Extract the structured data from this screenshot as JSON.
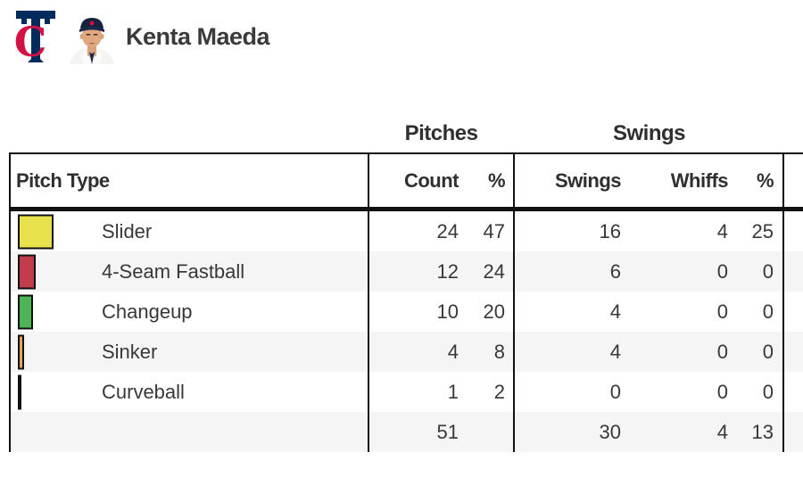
{
  "header": {
    "team_logo_name": "minnesota-twins-tc-logo",
    "player_name": "Kenta Maeda"
  },
  "table": {
    "group_headers": {
      "pitches": "Pitches",
      "swings": "Swings"
    },
    "columns": {
      "pitch_type": "Pitch Type",
      "count": "Count",
      "count_pct": "%",
      "swings": "Swings",
      "whiffs": "Whiffs",
      "swings_pct": "%"
    },
    "rows": [
      {
        "pitch": "Slider",
        "swatch_color": "#e7e14d",
        "count": "24",
        "count_pct": "47",
        "swings": "16",
        "whiffs": "4",
        "whiff_pct": "25"
      },
      {
        "pitch": "4-Seam Fastball",
        "swatch_color": "#c13c4d",
        "count": "12",
        "count_pct": "24",
        "swings": "6",
        "whiffs": "0",
        "whiff_pct": "0"
      },
      {
        "pitch": "Changeup",
        "swatch_color": "#4fb456",
        "count": "10",
        "count_pct": "20",
        "swings": "4",
        "whiffs": "0",
        "whiff_pct": "0"
      },
      {
        "pitch": "Sinker",
        "swatch_color": "#e3a45c",
        "count": "4",
        "count_pct": "8",
        "swings": "4",
        "whiffs": "0",
        "whiff_pct": "0"
      },
      {
        "pitch": "Curveball",
        "swatch_color": "#222222",
        "count": "1",
        "count_pct": "2",
        "swings": "0",
        "whiffs": "0",
        "whiff_pct": "0"
      }
    ],
    "totals": {
      "count": "51",
      "count_pct": "",
      "swings": "30",
      "whiffs": "4",
      "whiff_pct": "13"
    }
  },
  "colors": {
    "text_dark": "#333333",
    "border_black": "#111111",
    "row_stripe": "#f5f5f5",
    "twins_navy": "#002b5c",
    "twins_red": "#d31145"
  }
}
